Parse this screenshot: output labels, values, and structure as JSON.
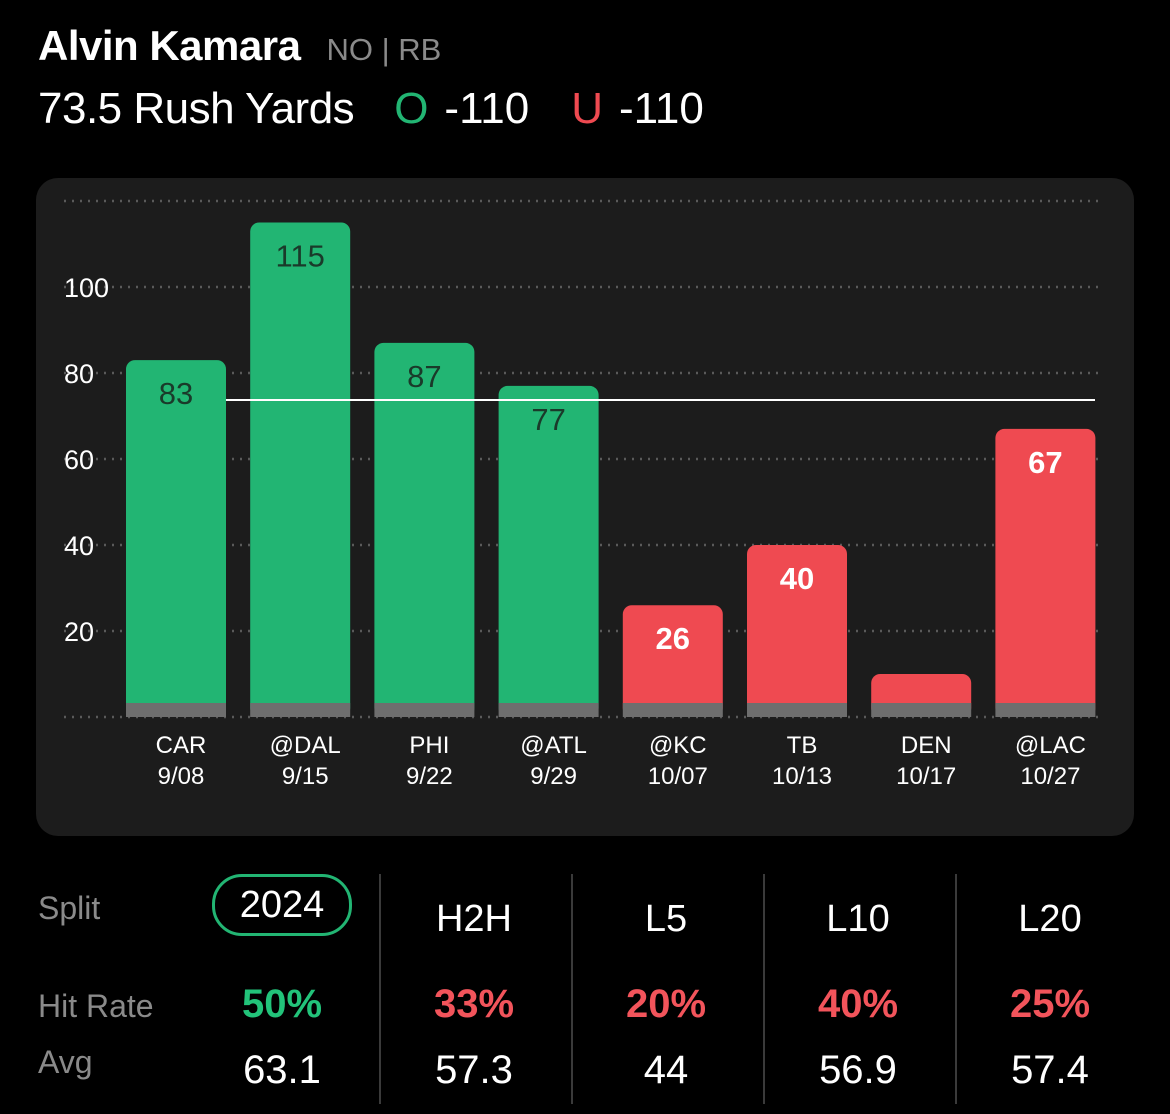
{
  "header": {
    "player_name": "Alvin Kamara",
    "team_position": "NO | RB",
    "prop_label": "73.5 Rush Yards",
    "over": {
      "tag": "O",
      "odds": "-110"
    },
    "under": {
      "tag": "U",
      "odds": "-110"
    }
  },
  "colors": {
    "hit": "#22b573",
    "miss": "#ef4a51",
    "background": "#000000",
    "card": "#1c1c1c"
  },
  "chart_data": {
    "type": "bar",
    "categories": [
      "CAR",
      "@DAL",
      "PHI",
      "@ATL",
      "@KC",
      "TB",
      "DEN",
      "@LAC"
    ],
    "dates": [
      "9/08",
      "9/15",
      "9/22",
      "9/29",
      "10/07",
      "10/13",
      "10/17",
      "10/27"
    ],
    "values": [
      83,
      115,
      87,
      77,
      26,
      40,
      10,
      67
    ],
    "value_labels": [
      "83",
      "115",
      "87",
      "77",
      "26",
      "40",
      "",
      "67"
    ],
    "line_value": 73.5,
    "yticks": [
      20,
      40,
      60,
      80,
      100
    ],
    "ylim": [
      0,
      120
    ],
    "grid": true,
    "bar_colors": [
      "hit",
      "hit",
      "hit",
      "hit",
      "miss",
      "miss",
      "miss",
      "miss"
    ]
  },
  "splits": {
    "row_labels": {
      "split": "Split",
      "hit_rate": "Hit Rate",
      "avg": "Avg"
    },
    "columns": [
      {
        "name": "2024",
        "hit_rate": "50%",
        "avg": "63.1",
        "status": "hit",
        "active": true
      },
      {
        "name": "H2H",
        "hit_rate": "33%",
        "avg": "57.3",
        "status": "miss",
        "active": false
      },
      {
        "name": "L5",
        "hit_rate": "20%",
        "avg": "44",
        "status": "miss",
        "active": false
      },
      {
        "name": "L10",
        "hit_rate": "40%",
        "avg": "56.9",
        "status": "miss",
        "active": false
      },
      {
        "name": "L20",
        "hit_rate": "25%",
        "avg": "57.4",
        "status": "miss",
        "active": false
      }
    ]
  }
}
